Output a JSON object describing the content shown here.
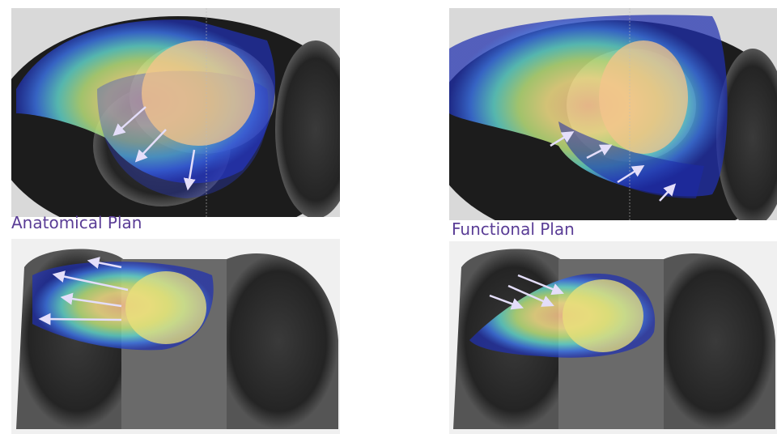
{
  "panels": [
    {
      "label": "Anatomical Plan"
    },
    {
      "label": "Functional Plan"
    }
  ]
}
